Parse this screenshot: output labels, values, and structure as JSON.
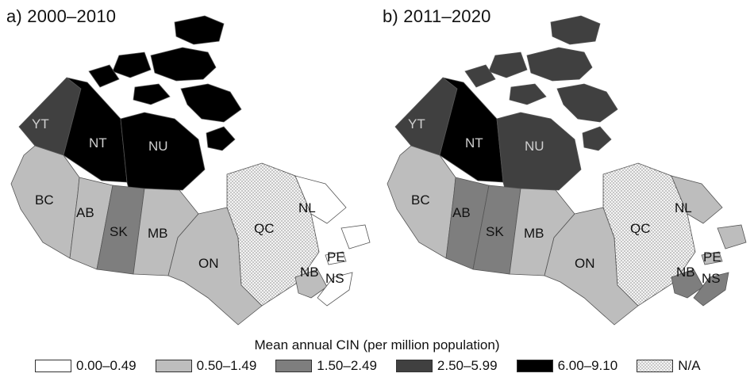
{
  "panels": [
    {
      "title": "a) 2000–2010"
    },
    {
      "title": "b) 2011–2020"
    }
  ],
  "provinces": [
    "YT",
    "NT",
    "NU",
    "BC",
    "AB",
    "SK",
    "MB",
    "ON",
    "QC",
    "NL",
    "NB",
    "PE",
    "NS"
  ],
  "classes": {
    "c0": {
      "label": "0.00–0.49",
      "color": "#ffffff"
    },
    "c1": {
      "label": "0.50–1.49",
      "color": "#bdbdbd"
    },
    "c2": {
      "label": "1.50–2.49",
      "color": "#7e7e7e"
    },
    "c3": {
      "label": "2.50–5.99",
      "color": "#404040"
    },
    "c4": {
      "label": "6.00–9.10",
      "color": "#000000"
    },
    "na": {
      "label": "N/A",
      "color": "pattern"
    }
  },
  "panel_classes": [
    {
      "YT": "c3",
      "NT": "c4",
      "NU": "c4",
      "BC": "c1",
      "AB": "c1",
      "SK": "c2",
      "MB": "c1",
      "ON": "c1",
      "QC": "na",
      "NL": "c0",
      "NB": "c1",
      "PE": "c0",
      "NS": "c0"
    },
    {
      "YT": "c3",
      "NT": "c4",
      "NU": "c3",
      "BC": "c1",
      "AB": "c2",
      "SK": "c2",
      "MB": "c1",
      "ON": "c1",
      "QC": "na",
      "NL": "c1",
      "NB": "c2",
      "PE": "c1",
      "NS": "c2"
    }
  ],
  "legend": {
    "title": "Mean annual CIN (per million population)",
    "items": [
      {
        "label": "0.00–0.49",
        "class": "c0"
      },
      {
        "label": "0.50–1.49",
        "class": "c1"
      },
      {
        "label": "1.50–2.49",
        "class": "c2"
      },
      {
        "label": "2.50–5.99",
        "class": "c3"
      },
      {
        "label": "6.00–9.10",
        "class": "c4"
      },
      {
        "label": "N/A",
        "class": "na"
      }
    ]
  }
}
